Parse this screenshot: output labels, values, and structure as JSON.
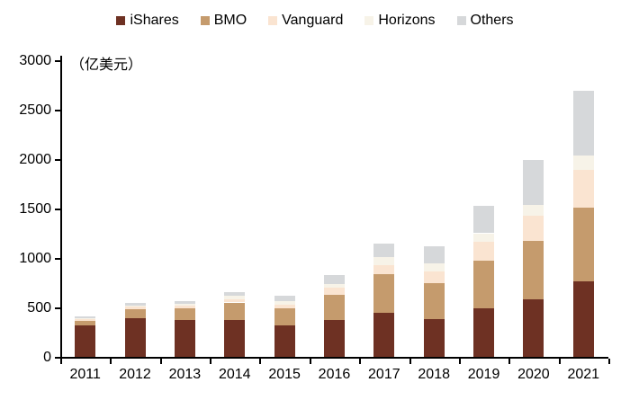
{
  "chart_data": {
    "type": "bar",
    "stacked": true,
    "unit_label": "（亿美元）",
    "legend_position": "top",
    "grid": false,
    "categories": [
      "2011",
      "2012",
      "2013",
      "2014",
      "2015",
      "2016",
      "2017",
      "2018",
      "2019",
      "2020",
      "2021"
    ],
    "series": [
      {
        "name": "iShares",
        "color": "#6E3123",
        "values": [
          315,
          390,
          375,
          370,
          315,
          370,
          445,
          385,
          495,
          585,
          765
        ]
      },
      {
        "name": "BMO",
        "color": "#C59B6D",
        "values": [
          45,
          95,
          115,
          180,
          175,
          255,
          390,
          360,
          480,
          585,
          745
        ]
      },
      {
        "name": "Vanguard",
        "color": "#FAE4D1",
        "values": [
          18,
          20,
          25,
          35,
          40,
          75,
          95,
          120,
          190,
          255,
          380
        ]
      },
      {
        "name": "Horizons",
        "color": "#F7F3E8",
        "values": [
          10,
          15,
          20,
          30,
          30,
          40,
          75,
          80,
          85,
          115,
          150
        ]
      },
      {
        "name": "Others",
        "color": "#D6D8DA",
        "values": [
          17,
          25,
          30,
          40,
          55,
          90,
          145,
          170,
          280,
          450,
          650
        ]
      }
    ],
    "totals": [
      405,
      545,
      565,
      655,
      615,
      830,
      1150,
      1115,
      1530,
      1990,
      2690
    ],
    "ylim": [
      0,
      3000
    ],
    "ytick_step": 500,
    "yticks": [
      "0",
      "500",
      "1000",
      "1500",
      "2000",
      "2500",
      "3000"
    ],
    "axis_color": "#000000",
    "text_color": "#000000"
  }
}
